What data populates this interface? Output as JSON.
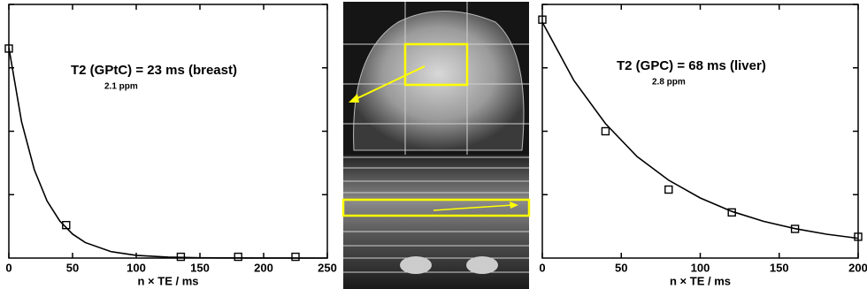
{
  "chart_data": [
    {
      "type": "scatter",
      "annotation": "T2 (GPtC) = 23 ms (breast)",
      "annotation_note": "2.1 ppm",
      "xlabel": "n × TE / ms",
      "xlim": [
        0,
        250
      ],
      "xticks": [
        0,
        50,
        100,
        150,
        200,
        250
      ],
      "ylim": [
        0,
        1
      ],
      "yticks": [
        0.25,
        0.5,
        0.75,
        1
      ],
      "ytick_labels": false,
      "series": [
        {
          "mode": "markers",
          "color": "#000000",
          "x": [
            0,
            45,
            135,
            180,
            225
          ],
          "values": [
            0.826,
            0.13,
            0.005,
            0.005,
            0.005
          ]
        },
        {
          "mode": "line",
          "color": "#000000",
          "x": [
            0,
            10,
            20,
            30,
            40,
            50,
            60,
            80,
            100,
            125,
            150,
            200,
            250
          ],
          "values": [
            0.83,
            0.537,
            0.348,
            0.225,
            0.146,
            0.0946,
            0.0611,
            0.0256,
            0.0107,
            0.0036,
            0.0012,
            0.0001,
            0
          ]
        }
      ]
    },
    {
      "type": "scatter",
      "annotation": "T2 (GPC) = 68 ms (liver)",
      "annotation_note": "2.8 ppm",
      "xlabel": "n × TE / ms",
      "xlim": [
        0,
        200
      ],
      "xticks": [
        0,
        50,
        100,
        150,
        200
      ],
      "ylim": [
        0,
        1
      ],
      "yticks": [
        0.25,
        0.5,
        0.75,
        1
      ],
      "ytick_labels": false,
      "series": [
        {
          "mode": "markers",
          "color": "#000000",
          "x": [
            0,
            40,
            80,
            120,
            160,
            200
          ],
          "values": [
            0.94,
            0.5,
            0.27,
            0.18,
            0.115,
            0.084
          ]
        },
        {
          "mode": "line",
          "color": "#000000",
          "x": [
            0,
            20,
            40,
            60,
            80,
            100,
            120,
            140,
            160,
            180,
            200
          ],
          "values": [
            0.93,
            0.7,
            0.53,
            0.4,
            0.307,
            0.237,
            0.184,
            0.145,
            0.116,
            0.094,
            0.078
          ]
        }
      ]
    }
  ]
}
